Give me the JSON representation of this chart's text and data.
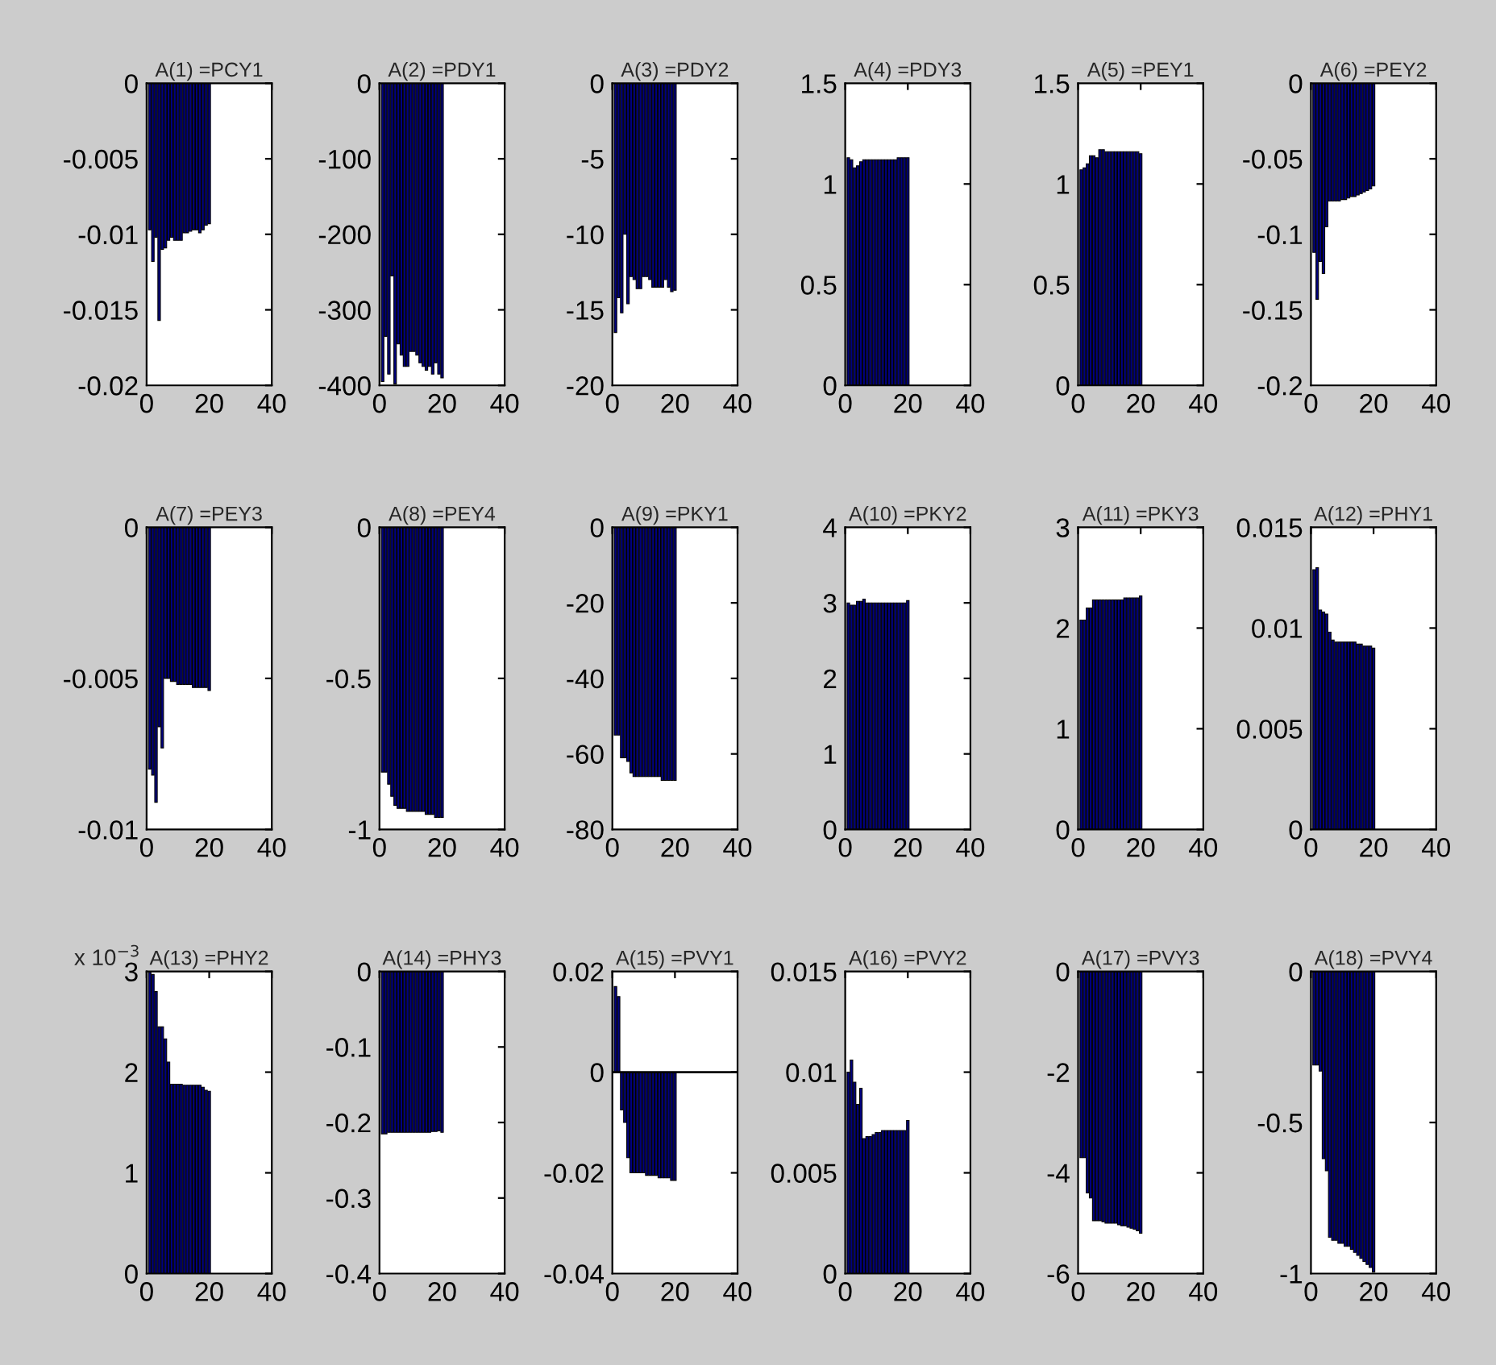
{
  "chart_data": [
    {
      "type": "bar",
      "title": "A(1) =PCY1",
      "color": "#000080",
      "x": [
        1,
        2,
        3,
        4,
        5,
        6,
        7,
        8,
        9,
        10,
        11,
        12,
        13,
        14,
        15,
        16,
        17,
        18,
        19,
        20
      ],
      "values": [
        -0.0097,
        -0.0118,
        -0.0102,
        -0.0157,
        -0.011,
        -0.0109,
        -0.0104,
        -0.0102,
        -0.0104,
        -0.0104,
        -0.0104,
        -0.0099,
        -0.0099,
        -0.0098,
        -0.0097,
        -0.0097,
        -0.0099,
        -0.0097,
        -0.0094,
        -0.0093
      ],
      "xlim": [
        0,
        40
      ],
      "xticks": [
        0,
        20,
        40
      ],
      "ylim": [
        -0.02,
        0
      ],
      "yticks": [
        -0.02,
        -0.015,
        -0.01,
        -0.005,
        0
      ]
    },
    {
      "type": "bar",
      "title": "A(2) =PDY1",
      "color": "#000080",
      "x": [
        1,
        2,
        3,
        4,
        5,
        6,
        7,
        8,
        9,
        10,
        11,
        12,
        13,
        14,
        15,
        16,
        17,
        18,
        19,
        20
      ],
      "values": [
        -395,
        -335,
        -385,
        -255,
        -398,
        -345,
        -360,
        -375,
        -375,
        -355,
        -355,
        -360,
        -370,
        -375,
        -380,
        -375,
        -385,
        -370,
        -385,
        -390
      ],
      "xlim": [
        0,
        40
      ],
      "xticks": [
        0,
        20,
        40
      ],
      "ylim": [
        -400,
        0
      ],
      "yticks": [
        -400,
        -300,
        -200,
        -100,
        0
      ]
    },
    {
      "type": "bar",
      "title": "A(3) =PDY2",
      "color": "#000080",
      "x": [
        1,
        2,
        3,
        4,
        5,
        6,
        7,
        8,
        9,
        10,
        11,
        12,
        13,
        14,
        15,
        16,
        17,
        18,
        19,
        20
      ],
      "values": [
        -16.5,
        -14.2,
        -15.2,
        -10,
        -14.6,
        -12.8,
        -13,
        -13.6,
        -13.6,
        -12.8,
        -12.8,
        -13,
        -13.5,
        -13.5,
        -13.5,
        -13.5,
        -13,
        -13.5,
        -13.8,
        -13.7
      ],
      "xlim": [
        0,
        40
      ],
      "xticks": [
        0,
        20,
        40
      ],
      "ylim": [
        -20,
        0
      ],
      "yticks": [
        -20,
        -15,
        -10,
        -5,
        0
      ]
    },
    {
      "type": "bar",
      "title": "A(4) =PDY3",
      "color": "#000080",
      "x": [
        1,
        2,
        3,
        4,
        5,
        6,
        7,
        8,
        9,
        10,
        11,
        12,
        13,
        14,
        15,
        16,
        17,
        18,
        19,
        20
      ],
      "values": [
        1.13,
        1.12,
        1.08,
        1.09,
        1.11,
        1.12,
        1.12,
        1.12,
        1.12,
        1.12,
        1.12,
        1.12,
        1.12,
        1.12,
        1.12,
        1.12,
        1.13,
        1.13,
        1.13,
        1.13
      ],
      "xlim": [
        0,
        40
      ],
      "xticks": [
        0,
        20,
        40
      ],
      "ylim": [
        0,
        1.5
      ],
      "yticks": [
        0,
        0.5,
        1,
        1.5
      ]
    },
    {
      "type": "bar",
      "title": "A(5) =PEY1",
      "color": "#000080",
      "x": [
        1,
        2,
        3,
        4,
        5,
        6,
        7,
        8,
        9,
        10,
        11,
        12,
        13,
        14,
        15,
        16,
        17,
        18,
        19,
        20
      ],
      "values": [
        1.07,
        1.08,
        1.1,
        1.14,
        1.14,
        1.13,
        1.17,
        1.17,
        1.16,
        1.16,
        1.16,
        1.16,
        1.16,
        1.16,
        1.16,
        1.16,
        1.16,
        1.16,
        1.16,
        1.15
      ],
      "xlim": [
        0,
        40
      ],
      "xticks": [
        0,
        20,
        40
      ],
      "ylim": [
        0,
        1.5
      ],
      "yticks": [
        0,
        0.5,
        1,
        1.5
      ]
    },
    {
      "type": "bar",
      "title": "A(6) =PEY2",
      "color": "#000080",
      "x": [
        1,
        2,
        3,
        4,
        5,
        6,
        7,
        8,
        9,
        10,
        11,
        12,
        13,
        14,
        15,
        16,
        17,
        18,
        19,
        20
      ],
      "values": [
        -0.112,
        -0.143,
        -0.118,
        -0.126,
        -0.095,
        -0.078,
        -0.078,
        -0.078,
        -0.078,
        -0.077,
        -0.077,
        -0.076,
        -0.075,
        -0.075,
        -0.074,
        -0.073,
        -0.072,
        -0.071,
        -0.07,
        -0.068
      ],
      "xlim": [
        0,
        40
      ],
      "xticks": [
        0,
        20,
        40
      ],
      "ylim": [
        -0.2,
        0
      ],
      "yticks": [
        -0.2,
        -0.15,
        -0.1,
        -0.05,
        0
      ]
    },
    {
      "type": "bar",
      "title": "A(7) =PEY3",
      "color": "#000080",
      "x": [
        1,
        2,
        3,
        4,
        5,
        6,
        7,
        8,
        9,
        10,
        11,
        12,
        13,
        14,
        15,
        16,
        17,
        18,
        19,
        20
      ],
      "values": [
        -0.008,
        -0.0082,
        -0.0091,
        -0.0066,
        -0.0073,
        -0.005,
        -0.005,
        -0.0051,
        -0.0051,
        -0.0052,
        -0.0052,
        -0.0052,
        -0.0052,
        -0.0052,
        -0.0053,
        -0.0053,
        -0.0053,
        -0.0053,
        -0.0053,
        -0.0054
      ],
      "xlim": [
        0,
        40
      ],
      "xticks": [
        0,
        20,
        40
      ],
      "ylim": [
        -0.01,
        0
      ],
      "yticks": [
        -0.01,
        -0.005,
        0
      ]
    },
    {
      "type": "bar",
      "title": "A(8) =PEY4",
      "color": "#000080",
      "x": [
        1,
        2,
        3,
        4,
        5,
        6,
        7,
        8,
        9,
        10,
        11,
        12,
        13,
        14,
        15,
        16,
        17,
        18,
        19,
        20
      ],
      "values": [
        -0.81,
        -0.81,
        -0.85,
        -0.89,
        -0.92,
        -0.93,
        -0.93,
        -0.93,
        -0.94,
        -0.94,
        -0.94,
        -0.94,
        -0.94,
        -0.94,
        -0.95,
        -0.95,
        -0.95,
        -0.96,
        -0.96,
        -0.96
      ],
      "xlim": [
        0,
        40
      ],
      "xticks": [
        0,
        20,
        40
      ],
      "ylim": [
        -1,
        0
      ],
      "yticks": [
        -1,
        -0.5,
        0
      ]
    },
    {
      "type": "bar",
      "title": "A(9) =PKY1",
      "color": "#000080",
      "x": [
        1,
        2,
        3,
        4,
        5,
        6,
        7,
        8,
        9,
        10,
        11,
        12,
        13,
        14,
        15,
        16,
        17,
        18,
        19,
        20
      ],
      "values": [
        -55,
        -55,
        -61,
        -61,
        -62,
        -65,
        -66,
        -66,
        -66,
        -66,
        -66,
        -66,
        -66,
        -66,
        -66,
        -67,
        -67,
        -67,
        -67,
        -67
      ],
      "xlim": [
        0,
        40
      ],
      "xticks": [
        0,
        20,
        40
      ],
      "ylim": [
        -80,
        0
      ],
      "yticks": [
        -80,
        -60,
        -40,
        -20,
        0
      ]
    },
    {
      "type": "bar",
      "title": "A(10) =PKY2",
      "color": "#000080",
      "x": [
        1,
        2,
        3,
        4,
        5,
        6,
        7,
        8,
        9,
        10,
        11,
        12,
        13,
        14,
        15,
        16,
        17,
        18,
        19,
        20
      ],
      "values": [
        3.0,
        2.97,
        2.97,
        3.02,
        3.02,
        3.05,
        3.0,
        3.0,
        3.0,
        3.0,
        3.0,
        3.0,
        3.0,
        3.0,
        3.0,
        3.0,
        3.0,
        3.0,
        3.0,
        3.03
      ],
      "xlim": [
        0,
        40
      ],
      "xticks": [
        0,
        20,
        40
      ],
      "ylim": [
        0,
        4
      ],
      "yticks": [
        0,
        1,
        2,
        3,
        4
      ]
    },
    {
      "type": "bar",
      "title": "A(11) =PKY3",
      "color": "#000080",
      "x": [
        1,
        2,
        3,
        4,
        5,
        6,
        7,
        8,
        9,
        10,
        11,
        12,
        13,
        14,
        15,
        16,
        17,
        18,
        19,
        20
      ],
      "values": [
        2.08,
        2.08,
        2.2,
        2.2,
        2.28,
        2.28,
        2.28,
        2.28,
        2.28,
        2.28,
        2.28,
        2.28,
        2.28,
        2.28,
        2.3,
        2.3,
        2.3,
        2.3,
        2.3,
        2.32
      ],
      "xlim": [
        0,
        40
      ],
      "xticks": [
        0,
        20,
        40
      ],
      "ylim": [
        0,
        3
      ],
      "yticks": [
        0,
        1,
        2,
        3
      ]
    },
    {
      "type": "bar",
      "title": "A(12) =PHY1",
      "color": "#000080",
      "x": [
        1,
        2,
        3,
        4,
        5,
        6,
        7,
        8,
        9,
        10,
        11,
        12,
        13,
        14,
        15,
        16,
        17,
        18,
        19,
        20
      ],
      "values": [
        0.0129,
        0.013,
        0.0109,
        0.0108,
        0.0107,
        0.0098,
        0.0094,
        0.0093,
        0.0093,
        0.0093,
        0.0093,
        0.0093,
        0.0093,
        0.0093,
        0.0092,
        0.0092,
        0.0091,
        0.0091,
        0.0091,
        0.009
      ],
      "xlim": [
        0,
        40
      ],
      "xticks": [
        0,
        20,
        40
      ],
      "ylim": [
        0,
        0.015
      ],
      "yticks": [
        0,
        0.005,
        0.01,
        0.015
      ]
    },
    {
      "type": "bar",
      "title": "A(13) =PHY2",
      "color": "#000080",
      "annotations": [
        "x 10$^{−3}$"
      ],
      "x": [
        1,
        2,
        3,
        4,
        5,
        6,
        7,
        8,
        9,
        10,
        11,
        12,
        13,
        14,
        15,
        16,
        17,
        18,
        19,
        20
      ],
      "values": [
        2.99,
        2.97,
        2.8,
        2.45,
        2.45,
        2.33,
        2.1,
        1.88,
        1.88,
        1.88,
        1.88,
        1.87,
        1.87,
        1.87,
        1.87,
        1.87,
        1.87,
        1.85,
        1.82,
        1.81
      ],
      "xlim": [
        0,
        40
      ],
      "xticks": [
        0,
        20,
        40
      ],
      "ylim": [
        0,
        3
      ],
      "yticks": [
        0,
        1,
        2,
        3
      ]
    },
    {
      "type": "bar",
      "title": "A(14) =PHY3",
      "color": "#000080",
      "x": [
        1,
        2,
        3,
        4,
        5,
        6,
        7,
        8,
        9,
        10,
        11,
        12,
        13,
        14,
        15,
        16,
        17,
        18,
        19,
        20
      ],
      "values": [
        -0.215,
        -0.215,
        -0.213,
        -0.213,
        -0.213,
        -0.213,
        -0.213,
        -0.213,
        -0.213,
        -0.213,
        -0.213,
        -0.213,
        -0.213,
        -0.213,
        -0.213,
        -0.213,
        -0.212,
        -0.212,
        -0.211,
        -0.213
      ],
      "xlim": [
        0,
        40
      ],
      "xticks": [
        0,
        20,
        40
      ],
      "ylim": [
        -0.4,
        0
      ],
      "yticks": [
        -0.4,
        -0.3,
        -0.2,
        -0.1,
        0
      ]
    },
    {
      "type": "bar",
      "title": "A(15) =PVY1",
      "color": "#000080",
      "ref_lines": [
        {
          "axis": "y",
          "value": 0,
          "color": "#000000"
        }
      ],
      "x": [
        1,
        2,
        3,
        4,
        5,
        6,
        7,
        8,
        9,
        10,
        11,
        12,
        13,
        14,
        15,
        16,
        17,
        18,
        19,
        20
      ],
      "values": [
        0.017,
        0.015,
        -0.0075,
        -0.01,
        -0.017,
        -0.02,
        -0.02,
        -0.02,
        -0.02,
        -0.02,
        -0.0205,
        -0.0205,
        -0.0205,
        -0.0205,
        -0.021,
        -0.021,
        -0.021,
        -0.021,
        -0.0215,
        -0.0215
      ],
      "xlim": [
        0,
        40
      ],
      "xticks": [
        0,
        20,
        40
      ],
      "ylim": [
        -0.04,
        0.02
      ],
      "yticks": [
        -0.04,
        -0.02,
        0,
        0.02
      ]
    },
    {
      "type": "bar",
      "title": "A(16) =PVY2",
      "color": "#000080",
      "x": [
        1,
        2,
        3,
        4,
        5,
        6,
        7,
        8,
        9,
        10,
        11,
        12,
        13,
        14,
        15,
        16,
        17,
        18,
        19,
        20
      ],
      "values": [
        0.01,
        0.0106,
        0.0095,
        0.0084,
        0.0092,
        0.0067,
        0.0068,
        0.0068,
        0.0069,
        0.007,
        0.007,
        0.0071,
        0.0071,
        0.0071,
        0.0071,
        0.0071,
        0.0071,
        0.0071,
        0.0071,
        0.0076
      ],
      "xlim": [
        0,
        40
      ],
      "xticks": [
        0,
        20,
        40
      ],
      "ylim": [
        0,
        0.015
      ],
      "yticks": [
        0,
        0.005,
        0.01,
        0.015
      ]
    },
    {
      "type": "bar",
      "title": "A(17) =PVY3",
      "color": "#000080",
      "x": [
        1,
        2,
        3,
        4,
        5,
        6,
        7,
        8,
        9,
        10,
        11,
        12,
        13,
        14,
        15,
        16,
        17,
        18,
        19,
        20
      ],
      "values": [
        -3.7,
        -3.7,
        -4.4,
        -4.5,
        -4.95,
        -4.95,
        -4.95,
        -4.97,
        -5.0,
        -5.0,
        -5.0,
        -5.0,
        -5.03,
        -5.05,
        -5.05,
        -5.08,
        -5.1,
        -5.12,
        -5.15,
        -5.2
      ],
      "xlim": [
        0,
        40
      ],
      "xticks": [
        0,
        20,
        40
      ],
      "ylim": [
        -6,
        0
      ],
      "yticks": [
        -6,
        -4,
        -2,
        0
      ]
    },
    {
      "type": "bar",
      "title": "A(18) =PVY4",
      "color": "#000080",
      "x": [
        1,
        2,
        3,
        4,
        5,
        6,
        7,
        8,
        9,
        10,
        11,
        12,
        13,
        14,
        15,
        16,
        17,
        18,
        19,
        20
      ],
      "values": [
        -0.31,
        -0.31,
        -0.33,
        -0.62,
        -0.66,
        -0.88,
        -0.89,
        -0.89,
        -0.9,
        -0.9,
        -0.91,
        -0.91,
        -0.92,
        -0.93,
        -0.94,
        -0.95,
        -0.96,
        -0.97,
        -0.98,
        -0.995
      ],
      "xlim": [
        0,
        40
      ],
      "xticks": [
        0,
        20,
        40
      ],
      "ylim": [
        -1,
        0
      ],
      "yticks": [
        -1,
        -0.5,
        0
      ]
    }
  ]
}
